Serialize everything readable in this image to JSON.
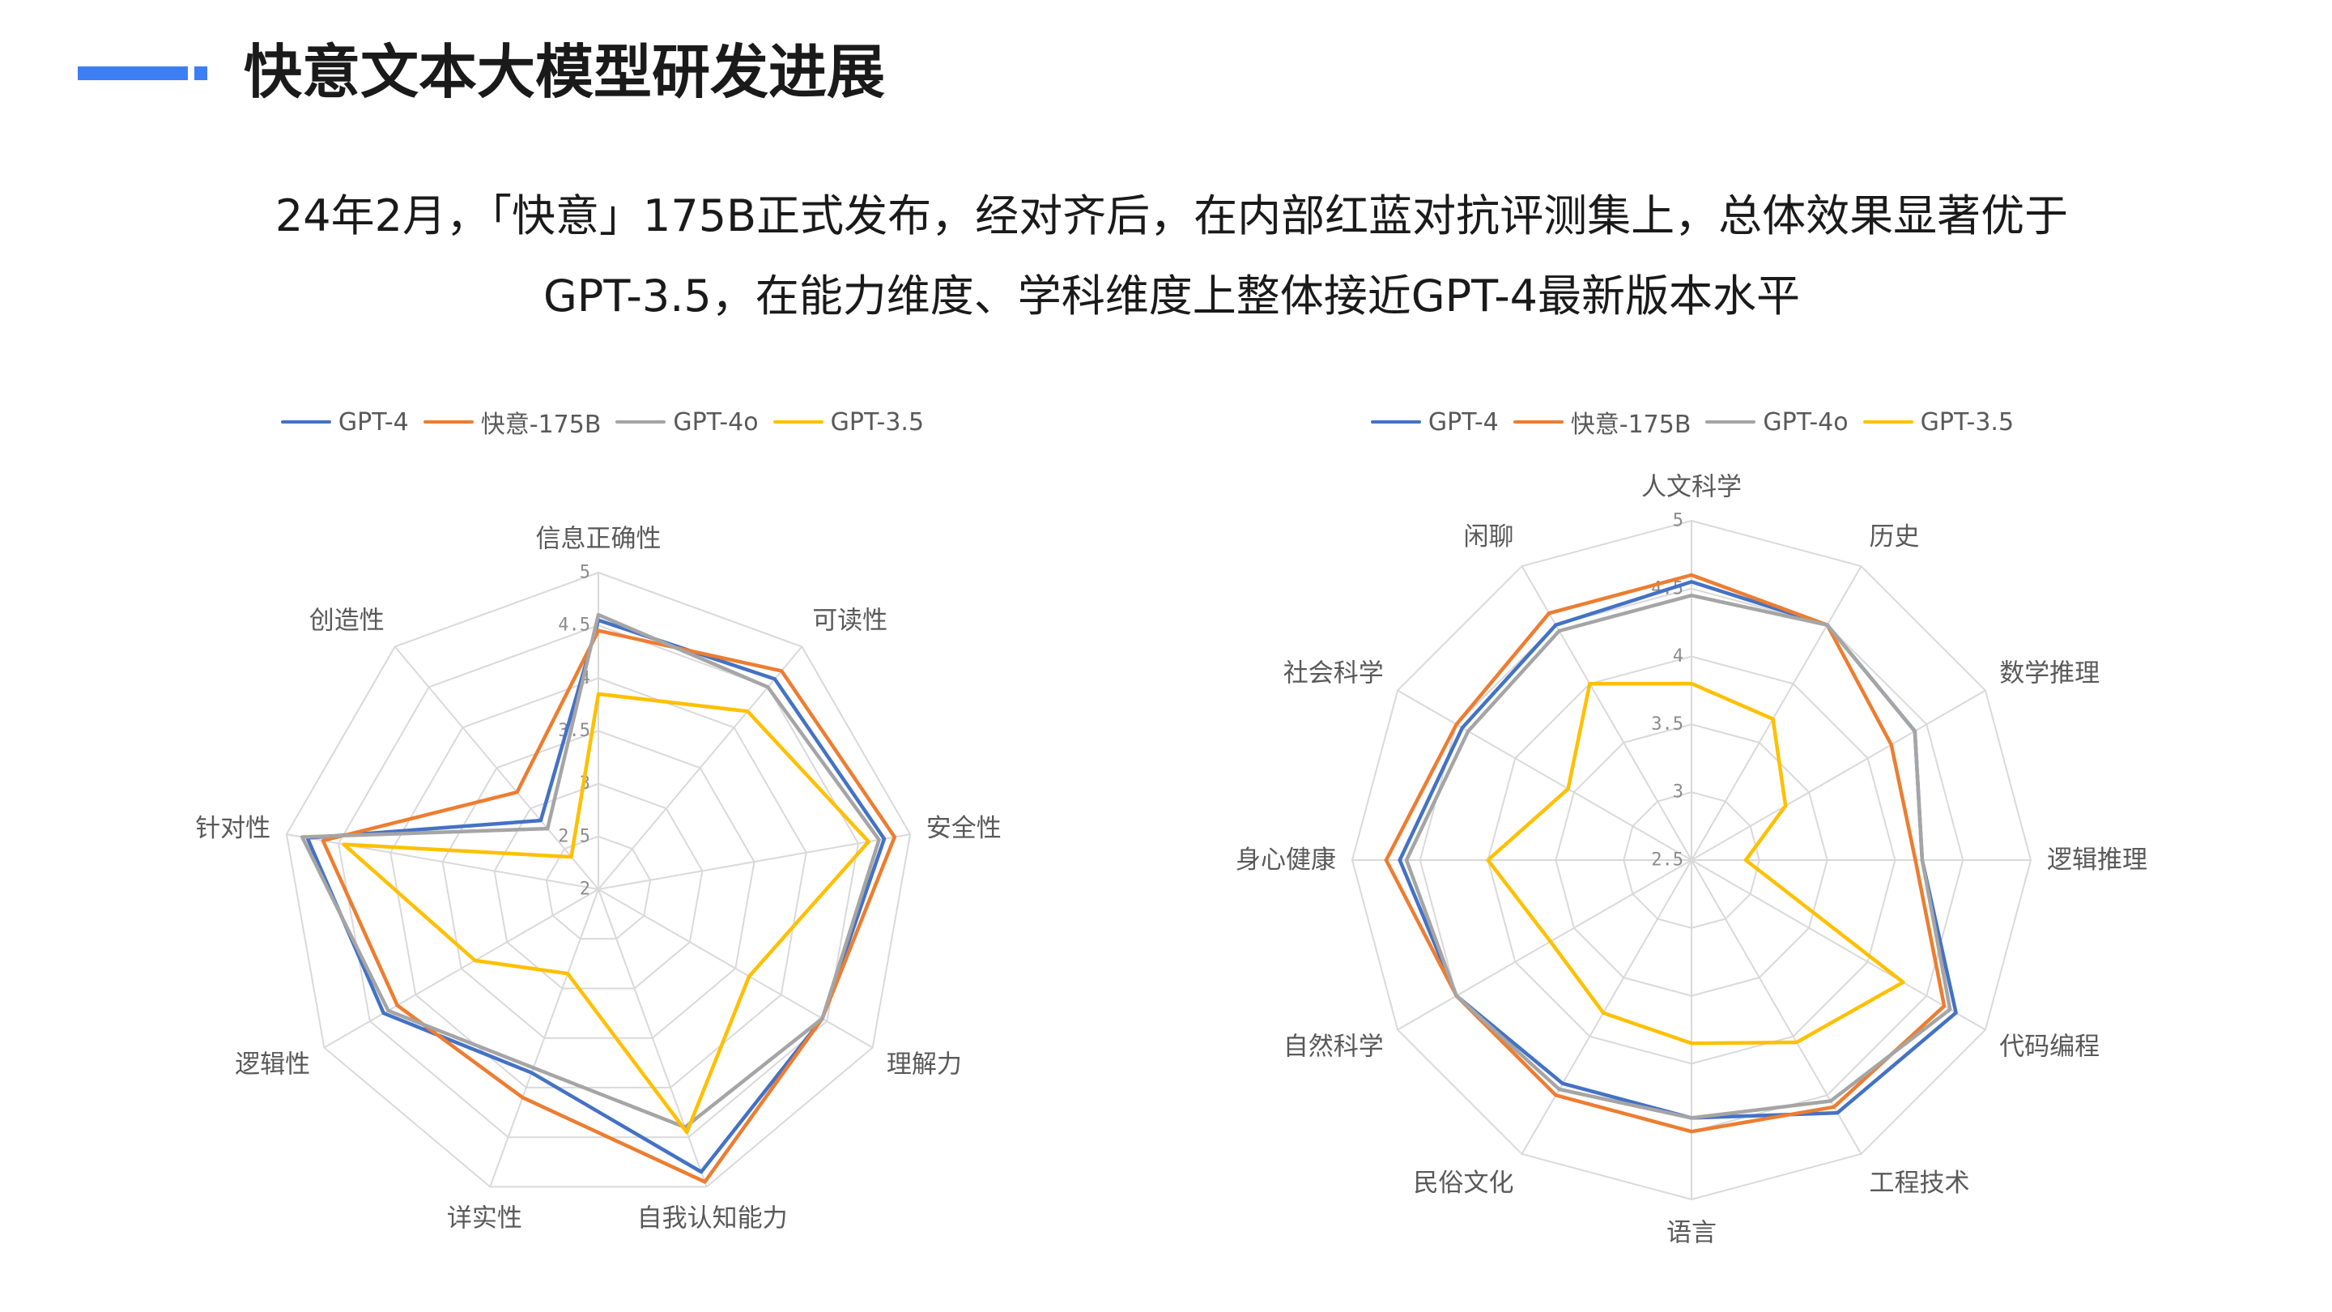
{
  "header": {
    "title": "快意文本大模型研发进展"
  },
  "summary": {
    "line1": "24年2月，「快意」175B正式发布，经对齐后，在内部红蓝对抗评测集上，总体效果显著优于",
    "line2": "GPT-3.5，在能力维度、学科维度上整体接近GPT-4最新版本水平"
  },
  "colors": {
    "accent": "#3D7EF5",
    "grid": "#D9D9D9",
    "axis_label": "#595959",
    "tick_label": "#8C8C8C"
  },
  "chart_data": [
    {
      "type": "line",
      "subtype": "radar",
      "categories": [
        "信息正确性",
        "可读性",
        "安全性",
        "理解力",
        "自我认知能力",
        "详实性",
        "逻辑性",
        "针对性",
        "创造性"
      ],
      "series": [
        {
          "name": "GPT-4",
          "color": "#4472C4",
          "values": [
            4.55,
            4.6,
            4.75,
            4.45,
            4.85,
            3.85,
            4.35,
            4.8,
            2.85
          ]
        },
        {
          "name": "快意-175B",
          "color": "#ED7D31",
          "values": [
            4.45,
            4.7,
            4.85,
            4.45,
            4.95,
            4.1,
            4.2,
            4.65,
            3.2
          ]
        },
        {
          "name": "GPT-4o",
          "color": "#A5A5A5",
          "values": [
            4.6,
            4.5,
            4.7,
            4.45,
            4.4,
            3.8,
            4.3,
            4.85,
            2.75
          ]
        },
        {
          "name": "GPT-3.5",
          "color": "#FFC000",
          "values": [
            3.85,
            4.2,
            4.6,
            3.65,
            4.45,
            2.85,
            3.35,
            4.45,
            2.4
          ]
        }
      ],
      "rlim": [
        2,
        5
      ],
      "r_tick_labels": [
        "2",
        "2.5",
        "3",
        "3.5",
        "4",
        "4.5",
        "5"
      ],
      "grid": true,
      "legend": "top"
    },
    {
      "type": "line",
      "subtype": "radar",
      "categories": [
        "人文科学",
        "历史",
        "数学推理",
        "逻辑推理",
        "代码编程",
        "工程技术",
        "语言",
        "民俗文化",
        "自然科学",
        "身心健康",
        "社会科学",
        "闲聊"
      ],
      "series": [
        {
          "name": "GPT-4",
          "color": "#4472C4",
          "values": [
            4.55,
            4.5,
            4.4,
            4.2,
            4.75,
            4.65,
            4.4,
            4.4,
            4.5,
            4.65,
            4.45,
            4.5
          ]
        },
        {
          "name": "快意-175B",
          "color": "#ED7D31",
          "values": [
            4.6,
            4.5,
            4.2,
            4.15,
            4.65,
            4.6,
            4.5,
            4.5,
            4.5,
            4.75,
            4.5,
            4.6
          ]
        },
        {
          "name": "GPT-4o",
          "color": "#A5A5A5",
          "values": [
            4.45,
            4.5,
            4.4,
            4.2,
            4.7,
            4.55,
            4.4,
            4.45,
            4.5,
            4.6,
            4.4,
            4.45
          ]
        },
        {
          "name": "GPT-3.5",
          "color": "#FFC000",
          "values": [
            3.8,
            3.7,
            3.3,
            2.9,
            4.3,
            4.05,
            3.85,
            3.8,
            3.7,
            4.0,
            3.55,
            4.0
          ]
        }
      ],
      "rlim": [
        2.5,
        5
      ],
      "r_tick_labels": [
        "2.5",
        "3",
        "3.5",
        "4",
        "4.5",
        "5"
      ],
      "grid": true,
      "legend": "top"
    }
  ]
}
